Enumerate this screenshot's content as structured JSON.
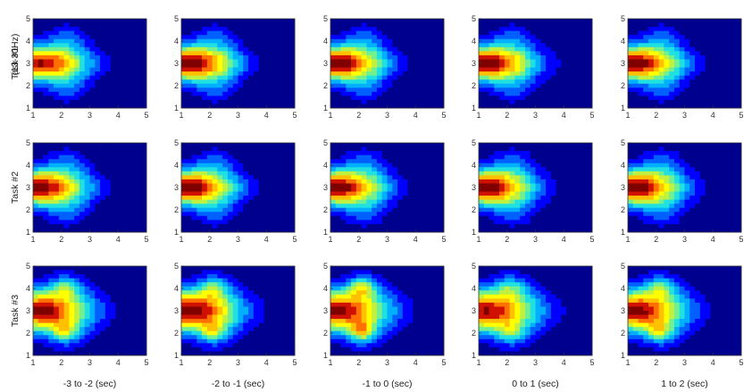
{
  "chart_data": {
    "type": "heatmap",
    "title": "",
    "grid_rows": 3,
    "grid_cols": 5,
    "row_labels": [
      "Task #1",
      "Task #2",
      "Task #3"
    ],
    "ylabel_band": "(13-30Hz)",
    "column_labels": [
      "-3 to -2 (sec)",
      "-2 to -1 (sec)",
      "-1 to 0 (sec)",
      "0 to 1 (sec)",
      "1 to 2 (sec)"
    ],
    "xlim": [
      1,
      5
    ],
    "ylim": [
      1,
      5
    ],
    "x_ticks": [
      1,
      2,
      3,
      4,
      5
    ],
    "y_ticks": [
      1,
      2,
      3,
      4,
      5
    ],
    "contour_levels": 10,
    "colormap": [
      "#00008f",
      "#0000ff",
      "#0060ff",
      "#00b0ff",
      "#20e0e0",
      "#70f090",
      "#c0f040",
      "#ffff00",
      "#ffc000",
      "#ff7000",
      "#d01000",
      "#800000"
    ],
    "panels": [
      [
        {
          "peak": 0.92,
          "spread_x": 2.6,
          "spread_y": 1.2,
          "bump": 0.0
        },
        {
          "peak": 1.0,
          "spread_x": 2.6,
          "spread_y": 1.2,
          "bump": 0.0
        },
        {
          "peak": 0.98,
          "spread_x": 2.6,
          "spread_y": 1.2,
          "bump": 0.0
        },
        {
          "peak": 0.98,
          "spread_x": 2.7,
          "spread_y": 1.2,
          "bump": 0.0
        },
        {
          "peak": 0.97,
          "spread_x": 2.6,
          "spread_y": 1.2,
          "bump": 0.0
        }
      ],
      [
        {
          "peak": 0.95,
          "spread_x": 2.5,
          "spread_y": 1.3,
          "bump": 0.0
        },
        {
          "peak": 0.98,
          "spread_x": 2.5,
          "spread_y": 1.2,
          "bump": 0.0
        },
        {
          "peak": 0.96,
          "spread_x": 2.6,
          "spread_y": 1.3,
          "bump": 0.0
        },
        {
          "peak": 0.97,
          "spread_x": 2.6,
          "spread_y": 1.3,
          "bump": 0.0
        },
        {
          "peak": 0.97,
          "spread_x": 2.6,
          "spread_y": 1.3,
          "bump": 0.0
        }
      ],
      [
        {
          "peak": 0.96,
          "spread_x": 3.0,
          "spread_y": 1.7,
          "bump": 0.25
        },
        {
          "peak": 0.98,
          "spread_x": 3.0,
          "spread_y": 1.7,
          "bump": 0.25
        },
        {
          "peak": 0.93,
          "spread_x": 3.1,
          "spread_y": 1.8,
          "bump": 0.35
        },
        {
          "peak": 0.92,
          "spread_x": 3.2,
          "spread_y": 1.8,
          "bump": 0.15
        },
        {
          "peak": 0.95,
          "spread_x": 3.0,
          "spread_y": 1.7,
          "bump": 0.25
        }
      ]
    ]
  }
}
